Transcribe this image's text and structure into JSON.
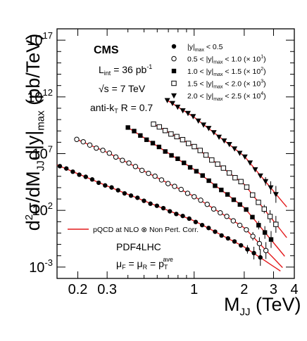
{
  "chart_data": {
    "type": "scatter",
    "x_scale": "log",
    "y_scale": "log",
    "xlim": [
      0.15,
      4.0
    ],
    "ylim": [
      0.0001,
      1e+18
    ],
    "xticks": [
      {
        "v": 0.2,
        "label": "0.2"
      },
      {
        "v": 0.3,
        "label": "0.3"
      },
      {
        "v": 1,
        "label": "1"
      },
      {
        "v": 2,
        "label": "2"
      },
      {
        "v": 3,
        "label": "3"
      },
      {
        "v": 4,
        "label": "4"
      }
    ],
    "yticks": [
      {
        "v": 1e+17,
        "base": "10",
        "exp": "17"
      },
      {
        "v": 1000000000000.0,
        "base": "10",
        "exp": "12"
      },
      {
        "v": 10000000.0,
        "base": "10",
        "exp": "7"
      },
      {
        "v": 100,
        "base": "10",
        "exp": "2"
      },
      {
        "v": 0.001,
        "base": "10",
        "exp": "-3"
      }
    ],
    "xlabel_main": "M",
    "xlabel_sub": "JJ",
    "xlabel_unit": " (TeV)",
    "ylabel_parts": {
      "d2": "d",
      "sup2": "2",
      "sigma": "σ/dM",
      "sub_jj": "JJ",
      "dy": "d|y|",
      "sub_max": "max",
      "unit": " (pb/TeV)"
    },
    "header": {
      "experiment": "CMS",
      "lumi_main": "L",
      "lumi_sub": "int",
      "lumi_value": " = 36 pb",
      "lumi_exp": "-1",
      "sqrt_s": "√s = 7 TeV",
      "algo": "anti-k",
      "algo_sub": "T",
      "algo_r": " R = 0.7"
    },
    "legend": [
      {
        "marker": "circle-filled",
        "pre": "|y|",
        "sub": "max",
        "post": " < 0.5",
        "scale": ""
      },
      {
        "marker": "circle-open",
        "pre": "0.5 < |y|",
        "sub": "max",
        "post": " < 1.0 ",
        "scale": "(× 10",
        "scale_exp": "1",
        "scale_end": ")"
      },
      {
        "marker": "square-filled",
        "pre": "1.0 < |y|",
        "sub": "max",
        "post": " < 1.5 ",
        "scale": "(× 10",
        "scale_exp": "2",
        "scale_end": ")"
      },
      {
        "marker": "square-open",
        "pre": "1.5 < |y|",
        "sub": "max",
        "post": " < 2.0 ",
        "scale": "(× 10",
        "scale_exp": "3",
        "scale_end": ")"
      },
      {
        "marker": "triangle-down",
        "pre": "2.0 < |y|",
        "sub": "max",
        "post": " < 2.5 ",
        "scale": "(× 10",
        "scale_exp": "4",
        "scale_end": ")"
      }
    ],
    "theory_label": "pQCD at NLO ⊗ Non Pert. Corr.",
    "pdf_label": "PDF4LHC",
    "scale_label": {
      "mu": "μ",
      "sub_f": "F",
      "eq": " = μ",
      "sub_r": "R",
      "eq2": " = p",
      "sub_t": "T",
      "sup_ave": "ave"
    },
    "line_color": "#e31a1c",
    "series": [
      {
        "name": "|y|max < 0.5",
        "marker": "circle-filled",
        "x_start": 0.156,
        "x_end": 2.5,
        "n": 32,
        "curve": [
          [
            0.15,
            1000000.0
          ],
          [
            0.3,
            14000.0
          ],
          [
            1.0,
            12
          ],
          [
            2.0,
            0.06
          ],
          [
            3.3,
            0.00045
          ]
        ]
      },
      {
        "name": "0.5 < |y|max < 1.0 (× 10^1)",
        "marker": "circle-open",
        "x_start": 0.197,
        "x_end": 2.7,
        "n": 30,
        "curve": [
          [
            0.197,
            180000000.0
          ],
          [
            0.3,
            13000000.0
          ],
          [
            1.0,
            1700.0
          ],
          [
            2.0,
            3.0
          ],
          [
            3.4,
            0.0009
          ]
        ]
      },
      {
        "name": "1.0 < |y|max < 1.5 (× 10^2)",
        "marker": "square-filled",
        "x_start": 0.4,
        "x_end": 2.9,
        "n": 24,
        "curve": [
          [
            0.4,
            2000000000.0
          ],
          [
            1.0,
            400000.0
          ],
          [
            2.0,
            180
          ],
          [
            3.5,
            0.009
          ]
        ]
      },
      {
        "name": "1.5 < |y|max < 2.0 (× 10^3)",
        "marker": "square-open",
        "x_start": 0.57,
        "x_end": 3.1,
        "n": 22,
        "curve": [
          [
            0.57,
            4000000000.0
          ],
          [
            1.0,
            45000000.0
          ],
          [
            2.0,
            20000.0
          ],
          [
            3.6,
            0.4
          ]
        ]
      },
      {
        "name": "2.0 < |y|max < 2.5 (× 10^4)",
        "marker": "triangle-down",
        "x_start": 0.69,
        "x_end": 3.1,
        "n": 22,
        "curve": [
          [
            0.69,
            500000000000.0
          ],
          [
            1.0,
            16000000000.0
          ],
          [
            2.0,
            6000000.0
          ],
          [
            3.6,
            200
          ]
        ]
      }
    ]
  }
}
